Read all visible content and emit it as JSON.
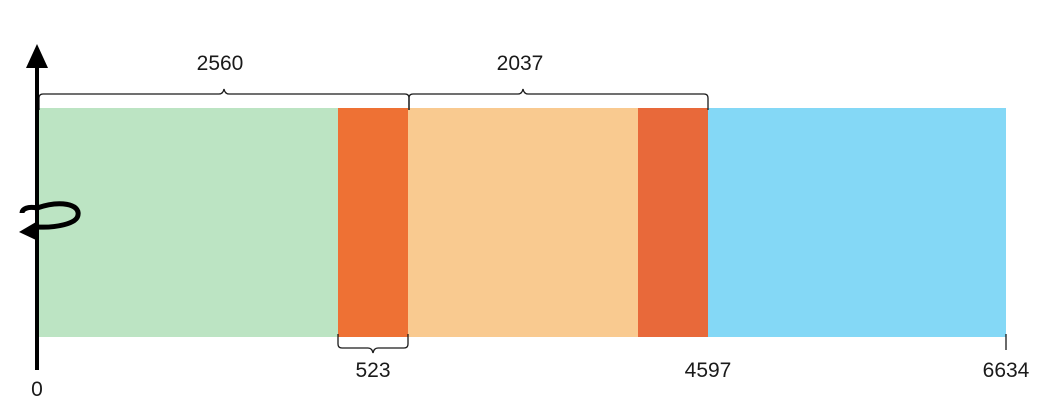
{
  "colors": {
    "background": "#ffffff",
    "ink": "#000000",
    "region_1": "#bce4c3",
    "region_2": "#ee7134",
    "region_3": "#f9ca90",
    "region_4": "#e8693a",
    "region_5": "#84d8f6"
  },
  "axis": {
    "origin_label": "0",
    "arrow": "upward-arrow-icon",
    "rotation": "rotation-arrow-icon"
  },
  "bottom_labels": {
    "label_1": "523",
    "label_2": "4597",
    "label_3": "6634"
  },
  "top_labels": {
    "span_1": "2560",
    "span_2": "2037"
  }
}
